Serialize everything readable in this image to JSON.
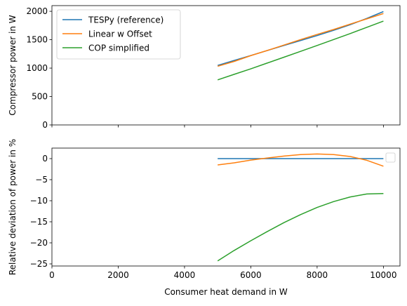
{
  "chart_data": [
    {
      "type": "line",
      "xlabel": "",
      "ylabel": "Compressor power in W",
      "xlim": [
        0,
        10500
      ],
      "ylim": [
        0,
        2100
      ],
      "xticks": [
        0,
        2000,
        4000,
        6000,
        8000,
        10000
      ],
      "yticks": [
        0,
        500,
        1000,
        1500,
        2000
      ],
      "show_xtick_labels": false,
      "grid": false,
      "legend": {
        "position": "upper-left",
        "entries": [
          "TESPy (reference)",
          "Linear w Offset",
          "COP simplified"
        ]
      },
      "series": [
        {
          "name": "TESPy (reference)",
          "color": "#1f77b4",
          "x": [
            5000,
            5500,
            6000,
            6500,
            7000,
            7500,
            8000,
            8500,
            9000,
            9500,
            10000
          ],
          "y": [
            1048,
            1135,
            1222,
            1310,
            1398,
            1485,
            1573,
            1665,
            1765,
            1875,
            1995
          ]
        },
        {
          "name": "Linear w Offset",
          "color": "#ff7f0e",
          "x": [
            5000,
            5500,
            6000,
            6500,
            7000,
            7500,
            8000,
            8500,
            9000,
            9500,
            10000
          ],
          "y": [
            1032,
            1118,
            1220,
            1311,
            1406,
            1502,
            1593,
            1680,
            1775,
            1867,
            1960
          ]
        },
        {
          "name": "COP simplified",
          "color": "#2ca02c",
          "x": [
            5000,
            5500,
            6000,
            6500,
            7000,
            7500,
            8000,
            8500,
            9000,
            9500,
            10000
          ],
          "y": [
            793,
            891,
            987,
            1090,
            1192,
            1295,
            1398,
            1503,
            1608,
            1718,
            1828
          ]
        }
      ]
    },
    {
      "type": "line",
      "xlabel": "Consumer heat demand in W",
      "ylabel": "Relative deviation of power in %",
      "xlim": [
        0,
        10500
      ],
      "ylim": [
        -25.5,
        2.5
      ],
      "xticks": [
        0,
        2000,
        4000,
        6000,
        8000,
        10000
      ],
      "yticks": [
        0,
        -5,
        -10,
        -15,
        -20,
        -25
      ],
      "show_xtick_labels": true,
      "grid": false,
      "legend": {
        "position": "upper-right",
        "entries": []
      },
      "series": [
        {
          "color": "#1f77b4",
          "x": [
            5000,
            5500,
            6000,
            6500,
            7000,
            7500,
            8000,
            8500,
            9000,
            9500,
            10000
          ],
          "y": [
            0,
            0,
            0,
            0,
            0,
            0,
            0,
            0,
            0,
            0,
            0
          ]
        },
        {
          "color": "#ff7f0e",
          "x": [
            5000,
            5500,
            6000,
            6500,
            7000,
            7500,
            8000,
            8500,
            9000,
            9500,
            10000
          ],
          "y": [
            -1.5,
            -1.0,
            -0.35,
            0.15,
            0.6,
            0.95,
            1.1,
            0.95,
            0.5,
            -0.4,
            -1.8
          ]
        },
        {
          "color": "#2ca02c",
          "x": [
            5000,
            5500,
            6000,
            6500,
            7000,
            7500,
            8000,
            8500,
            9000,
            9500,
            10000
          ],
          "y": [
            -24.3,
            -21.8,
            -19.5,
            -17.3,
            -15.2,
            -13.3,
            -11.6,
            -10.2,
            -9.1,
            -8.4,
            -8.3
          ]
        }
      ]
    }
  ]
}
